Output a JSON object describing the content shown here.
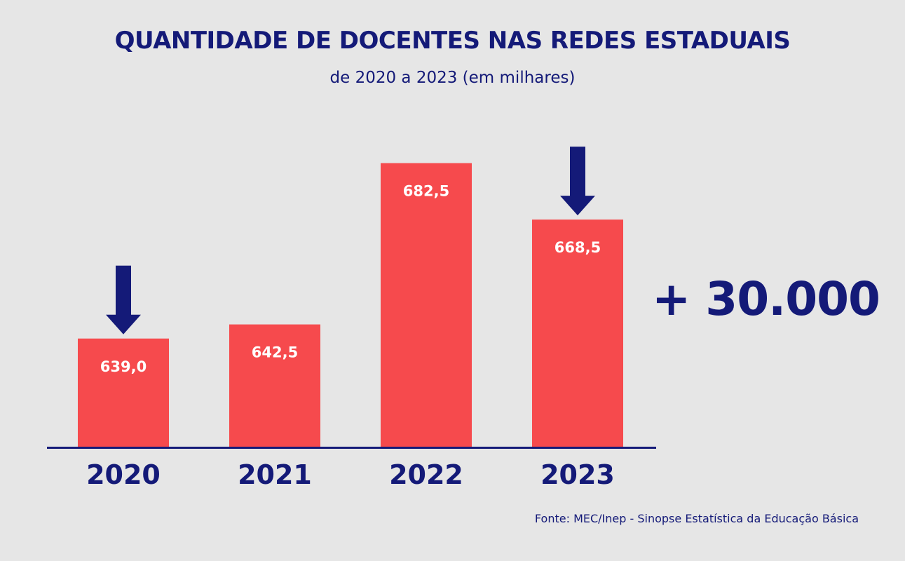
{
  "chart_data": {
    "type": "bar",
    "title": "QUANTIDADE DE DOCENTES NAS REDES ESTADUAIS",
    "subtitle": "de 2020 a 2023 (em milhares)",
    "categories": [
      "2020",
      "2021",
      "2022",
      "2023"
    ],
    "values": [
      639.0,
      642.5,
      682.5,
      668.5
    ],
    "value_labels": [
      "639,0",
      "642,5",
      "682,5",
      "668,5"
    ],
    "highlighted": [
      "2020",
      "2023"
    ],
    "annotation": "+ 30.000",
    "xlabel": "",
    "ylabel": "",
    "grid": false,
    "source": "Fonte: MEC/Inep - Sinopse Estatística da Educação Básica"
  },
  "colors": {
    "bar": "#f64a4d",
    "accent": "#141a78",
    "value_text": "#ffffff",
    "background": "#e6e6e6"
  }
}
